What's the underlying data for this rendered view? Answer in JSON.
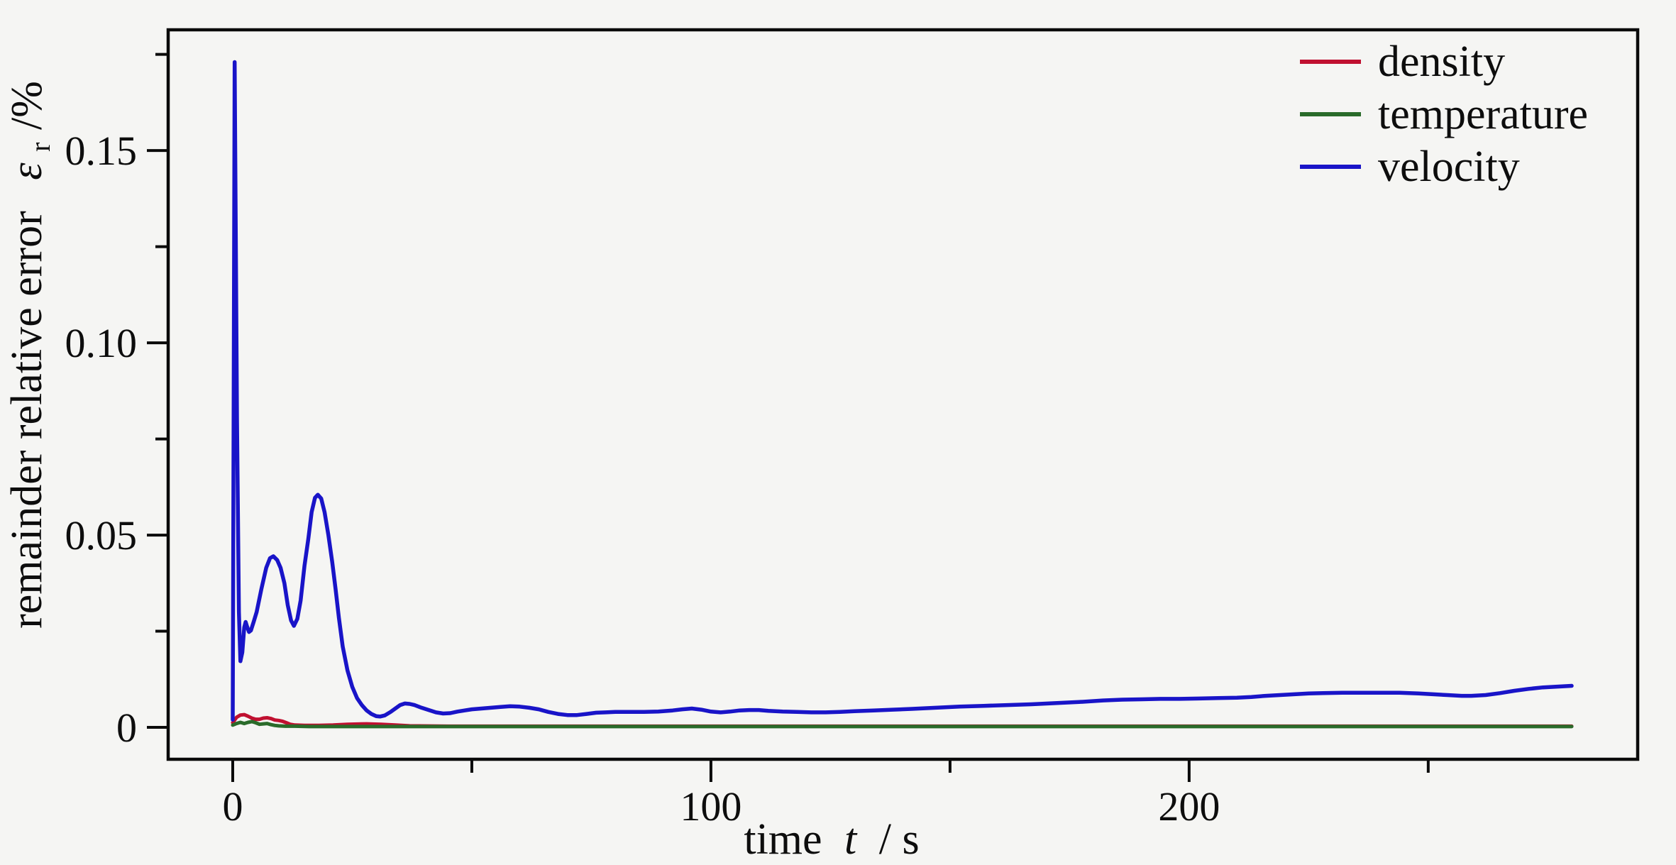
{
  "figure": {
    "background": "#f5f5f3",
    "frame_color": "#0a0a0a"
  },
  "chart_data": {
    "type": "line",
    "title": "",
    "xlabel": "time t / s",
    "ylabel": "remainder relative error ε_r/%",
    "grid": false,
    "legend_position": "upper right",
    "x_axis": {
      "label_prefix": "time",
      "label_symbol": "t",
      "label_suffix": "/ s",
      "ticks": [
        0,
        100,
        200
      ],
      "tick_labels": [
        "0",
        "100",
        "200"
      ],
      "minor_ticks": [
        50,
        150,
        250
      ],
      "range": [
        -13.5,
        293.8
      ]
    },
    "y_axis": {
      "label_prefix": "remainder relative error",
      "label_symbol": "ε",
      "label_symbol_sub": "r",
      "label_suffix": "/%",
      "ticks": [
        0,
        0.05,
        0.1,
        0.15
      ],
      "tick_labels": [
        "0",
        "0.05",
        "0.10",
        "0.15"
      ],
      "minor_ticks": [
        0.025,
        0.075,
        0.125,
        0.175
      ],
      "range": [
        -0.0083,
        0.1814
      ]
    },
    "series": [
      {
        "name": "density",
        "color": "#c01030",
        "width": 5,
        "points": [
          [
            0,
            0.0012
          ],
          [
            0.8,
            0.0026
          ],
          [
            1.6,
            0.0032
          ],
          [
            2.4,
            0.0033
          ],
          [
            3.2,
            0.0029
          ],
          [
            4,
            0.0024
          ],
          [
            4.8,
            0.0021
          ],
          [
            5.6,
            0.0021
          ],
          [
            6.4,
            0.0024
          ],
          [
            7.2,
            0.0025
          ],
          [
            8,
            0.0023
          ],
          [
            8.8,
            0.0019
          ],
          [
            9.6,
            0.0018
          ],
          [
            10.4,
            0.0016
          ],
          [
            11.2,
            0.0012
          ],
          [
            12,
            0.0008
          ],
          [
            13,
            0.0006
          ],
          [
            15,
            0.0005
          ],
          [
            18,
            0.0005
          ],
          [
            21,
            0.0006
          ],
          [
            24,
            0.0008
          ],
          [
            28,
            0.0009
          ],
          [
            31,
            0.0008
          ],
          [
            34,
            0.0006
          ],
          [
            37,
            0.0004
          ],
          [
            45,
            0.0003
          ],
          [
            60,
            0.0003
          ],
          [
            90,
            0.0003
          ],
          [
            130,
            0.0003
          ],
          [
            180,
            0.0003
          ],
          [
            230,
            0.0003
          ],
          [
            280,
            0.0003
          ]
        ]
      },
      {
        "name": "temperature",
        "color": "#2a6b2a",
        "width": 5,
        "points": [
          [
            0,
            0.0006
          ],
          [
            0.8,
            0.001
          ],
          [
            1.6,
            0.0013
          ],
          [
            2.4,
            0.001
          ],
          [
            3.2,
            0.0013
          ],
          [
            4,
            0.0015
          ],
          [
            4.8,
            0.0012
          ],
          [
            5.6,
            0.0008
          ],
          [
            6.4,
            0.0009
          ],
          [
            7.2,
            0.001
          ],
          [
            8,
            0.0007
          ],
          [
            8.8,
            0.0005
          ],
          [
            9.6,
            0.0004
          ],
          [
            11,
            0.0003
          ],
          [
            13,
            0.0003
          ],
          [
            16,
            0.0002
          ],
          [
            20,
            0.0002
          ],
          [
            30,
            0.0002
          ],
          [
            50,
            0.0002
          ],
          [
            80,
            0.0002
          ],
          [
            120,
            0.0002
          ],
          [
            160,
            0.0002
          ],
          [
            200,
            0.0002
          ],
          [
            240,
            0.0002
          ],
          [
            280,
            0.0002
          ]
        ]
      },
      {
        "name": "velocity",
        "color": "#1914c8",
        "width": 5.5,
        "points": [
          [
            0,
            0.002
          ],
          [
            0.4,
            0.173
          ],
          [
            0.9,
            0.08
          ],
          [
            1.3,
            0.03
          ],
          [
            1.6,
            0.0172
          ],
          [
            2,
            0.0195
          ],
          [
            2.4,
            0.026
          ],
          [
            2.7,
            0.0274
          ],
          [
            3,
            0.0262
          ],
          [
            3.4,
            0.0248
          ],
          [
            3.8,
            0.0252
          ],
          [
            4.4,
            0.0275
          ],
          [
            5,
            0.03
          ],
          [
            6,
            0.036
          ],
          [
            7,
            0.0415
          ],
          [
            7.8,
            0.044
          ],
          [
            8.5,
            0.0445
          ],
          [
            9.3,
            0.0435
          ],
          [
            10,
            0.0415
          ],
          [
            10.8,
            0.0375
          ],
          [
            11.5,
            0.0318
          ],
          [
            12.2,
            0.0278
          ],
          [
            12.8,
            0.0264
          ],
          [
            13.5,
            0.0282
          ],
          [
            14.2,
            0.033
          ],
          [
            15,
            0.042
          ],
          [
            15.8,
            0.049
          ],
          [
            16.5,
            0.056
          ],
          [
            17.2,
            0.0597
          ],
          [
            17.8,
            0.0605
          ],
          [
            18.5,
            0.0595
          ],
          [
            19.2,
            0.056
          ],
          [
            20,
            0.05
          ],
          [
            20.8,
            0.043
          ],
          [
            21.5,
            0.036
          ],
          [
            22.2,
            0.0285
          ],
          [
            23,
            0.021
          ],
          [
            24,
            0.0148
          ],
          [
            25,
            0.0105
          ],
          [
            26,
            0.0076
          ],
          [
            27,
            0.0058
          ],
          [
            28,
            0.0044
          ],
          [
            29,
            0.0035
          ],
          [
            30,
            0.0029
          ],
          [
            30.8,
            0.0028
          ],
          [
            31.8,
            0.0031
          ],
          [
            33,
            0.004
          ],
          [
            34,
            0.0049
          ],
          [
            35,
            0.0058
          ],
          [
            36,
            0.0062
          ],
          [
            37,
            0.0061
          ],
          [
            38,
            0.0058
          ],
          [
            39.5,
            0.0051
          ],
          [
            41,
            0.0045
          ],
          [
            42.5,
            0.0039
          ],
          [
            44,
            0.0036
          ],
          [
            45.5,
            0.0037
          ],
          [
            47,
            0.0041
          ],
          [
            48.5,
            0.0044
          ],
          [
            50,
            0.0047
          ],
          [
            52,
            0.0049
          ],
          [
            54,
            0.0051
          ],
          [
            56,
            0.0053
          ],
          [
            58,
            0.0055
          ],
          [
            60,
            0.0054
          ],
          [
            62,
            0.0051
          ],
          [
            64,
            0.0047
          ],
          [
            66,
            0.004
          ],
          [
            68,
            0.0035
          ],
          [
            70,
            0.0032
          ],
          [
            72,
            0.0032
          ],
          [
            74,
            0.0035
          ],
          [
            76,
            0.0038
          ],
          [
            78,
            0.0039
          ],
          [
            80,
            0.004
          ],
          [
            83,
            0.004
          ],
          [
            86,
            0.004
          ],
          [
            89,
            0.0041
          ],
          [
            92,
            0.0044
          ],
          [
            94,
            0.0047
          ],
          [
            96,
            0.0049
          ],
          [
            98,
            0.0046
          ],
          [
            100,
            0.0041
          ],
          [
            102,
            0.0039
          ],
          [
            104,
            0.0041
          ],
          [
            106,
            0.0044
          ],
          [
            108,
            0.0045
          ],
          [
            110,
            0.0045
          ],
          [
            112,
            0.0043
          ],
          [
            115,
            0.0041
          ],
          [
            118,
            0.004
          ],
          [
            121,
            0.0039
          ],
          [
            124,
            0.0039
          ],
          [
            127,
            0.004
          ],
          [
            130,
            0.0042
          ],
          [
            134,
            0.0044
          ],
          [
            138,
            0.0046
          ],
          [
            142,
            0.0048
          ],
          [
            147,
            0.0051
          ],
          [
            152,
            0.0054
          ],
          [
            157,
            0.0056
          ],
          [
            162,
            0.0058
          ],
          [
            167,
            0.006
          ],
          [
            172,
            0.0063
          ],
          [
            177,
            0.0066
          ],
          [
            182,
            0.007
          ],
          [
            186,
            0.0072
          ],
          [
            190,
            0.0073
          ],
          [
            194,
            0.0074
          ],
          [
            198,
            0.0074
          ],
          [
            202,
            0.0075
          ],
          [
            206,
            0.0076
          ],
          [
            210,
            0.0077
          ],
          [
            213,
            0.0079
          ],
          [
            216,
            0.0082
          ],
          [
            219,
            0.0084
          ],
          [
            222,
            0.0086
          ],
          [
            225,
            0.0088
          ],
          [
            228,
            0.0089
          ],
          [
            232,
            0.009
          ],
          [
            236,
            0.009
          ],
          [
            240,
            0.009
          ],
          [
            244,
            0.009
          ],
          [
            248,
            0.0088
          ],
          [
            251,
            0.0086
          ],
          [
            254,
            0.0084
          ],
          [
            257,
            0.0082
          ],
          [
            259,
            0.0082
          ],
          [
            262,
            0.0084
          ],
          [
            265,
            0.0089
          ],
          [
            268,
            0.0095
          ],
          [
            271,
            0.01
          ],
          [
            274,
            0.0104
          ],
          [
            277,
            0.0106
          ],
          [
            280,
            0.0108
          ]
        ]
      }
    ]
  },
  "legend": {
    "entries": [
      {
        "label": "density"
      },
      {
        "label": "temperature"
      },
      {
        "label": "velocity"
      }
    ]
  }
}
